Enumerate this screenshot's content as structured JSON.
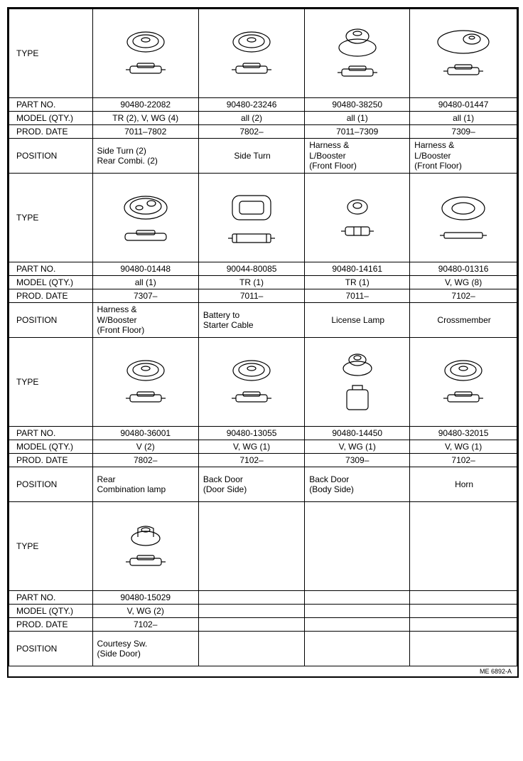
{
  "labels": {
    "type": "TYPE",
    "part_no": "PART NO.",
    "model_qty": "MODEL (QTY.)",
    "prod_date": "PROD. DATE",
    "position": "POSITION"
  },
  "blocks": [
    {
      "cols": [
        {
          "part_no": "90480-22082",
          "model": "TR (2), V, WG (4)",
          "date": "7011–7802",
          "pos": "Side Turn (2)\nRear Combi. (2)",
          "shape": "round"
        },
        {
          "part_no": "90480-23246",
          "model": "all (2)",
          "date": "7802–",
          "pos": "Side Turn",
          "shape": "round"
        },
        {
          "part_no": "90480-38250",
          "model": "all (1)",
          "date": "7011–7309",
          "pos": "Harness &\n        L/Booster\n(Front Floor)",
          "shape": "tall"
        },
        {
          "part_no": "90480-01447",
          "model": "all (1)",
          "date": "7309–",
          "pos": "Harness &\n        L/Booster\n(Front Floor)",
          "shape": "oval"
        }
      ]
    },
    {
      "cols": [
        {
          "part_no": "90480-01448",
          "model": "all (1)",
          "date": "7307–",
          "pos": "Harness &\n      W/Booster\n(Front Floor)",
          "shape": "oval2"
        },
        {
          "part_no": "90044-80085",
          "model": "TR (1)",
          "date": "7011–",
          "pos": "Battery to\n      Starter Cable",
          "shape": "square"
        },
        {
          "part_no": "90480-14161",
          "model": "TR (1)",
          "date": "7011–",
          "pos": "License Lamp",
          "shape": "small"
        },
        {
          "part_no": "90480-01316",
          "model": "V, WG (8)",
          "date": "7102–",
          "pos": "Crossmember",
          "shape": "ring"
        }
      ]
    },
    {
      "cols": [
        {
          "part_no": "90480-36001",
          "model": "V (2)",
          "date": "7802–",
          "pos": "Rear\nCombination lamp",
          "shape": "round"
        },
        {
          "part_no": "90480-13055",
          "model": "V, WG (1)",
          "date": "7102–",
          "pos": "Back Door\n(Door Side)",
          "shape": "round"
        },
        {
          "part_no": "90480-14450",
          "model": "V, WG (1)",
          "date": "7309–",
          "pos": "Back Door\n(Body Side)",
          "shape": "tall2"
        },
        {
          "part_no": "90480-32015",
          "model": "V, WG (1)",
          "date": "7102–",
          "pos": "Horn",
          "shape": "round"
        }
      ]
    },
    {
      "cols": [
        {
          "part_no": "90480-15029",
          "model": "V, WG (2)",
          "date": "7102–",
          "pos": "Courtesy Sw.\n(Side Door)",
          "shape": "plug"
        },
        {
          "part_no": "",
          "model": "",
          "date": "",
          "pos": "",
          "shape": ""
        },
        {
          "part_no": "",
          "model": "",
          "date": "",
          "pos": "",
          "shape": ""
        },
        {
          "part_no": "",
          "model": "",
          "date": "",
          "pos": "",
          "shape": ""
        }
      ]
    }
  ],
  "footer": "ME 6892-A",
  "style": {
    "stroke": "#000000",
    "fill": "#ffffff",
    "stroke_width": 1.2
  }
}
